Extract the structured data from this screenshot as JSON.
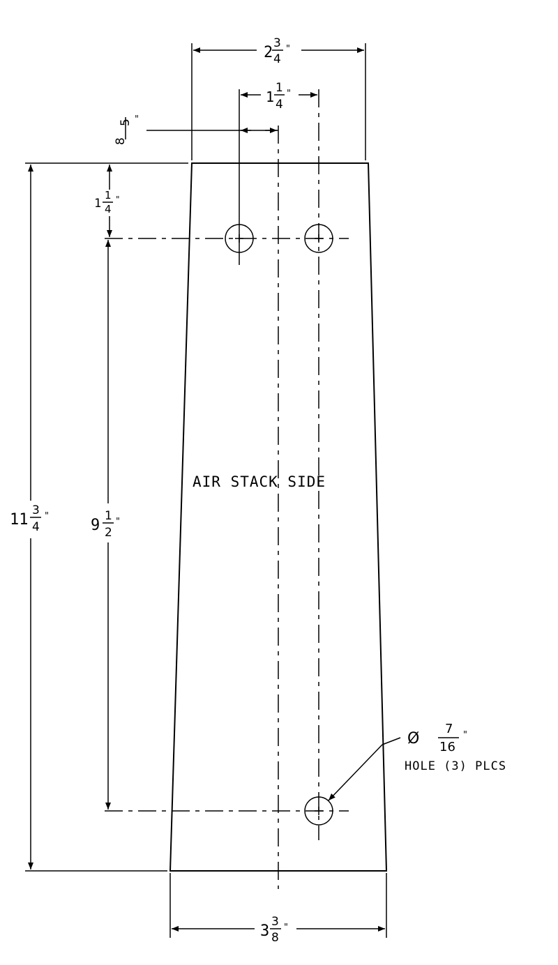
{
  "drawing": {
    "label": "AIR STACK SIDE",
    "dimensions": {
      "top_width": {
        "whole": "2",
        "num": "3",
        "den": "4",
        "mark": "\""
      },
      "hole_spacing": {
        "whole": "1",
        "num": "1",
        "den": "4",
        "mark": "\""
      },
      "centerline_offset": {
        "num": "5",
        "den": "8",
        "mark": "\""
      },
      "top_to_hole": {
        "whole": "1",
        "num": "1",
        "den": "4",
        "mark": "\""
      },
      "total_height": {
        "whole": "11",
        "num": "3",
        "den": "4",
        "mark": "\""
      },
      "hole_to_hole_vertical": {
        "whole": "9",
        "num": "1",
        "den": "2",
        "mark": "\""
      },
      "bottom_width": {
        "whole": "3",
        "num": "3",
        "den": "8",
        "mark": "\""
      }
    },
    "hole_callout": {
      "symbol": "Ø",
      "num": "7",
      "den": "16",
      "mark": "\"",
      "note": "HOLE (3) PLCS"
    }
  }
}
